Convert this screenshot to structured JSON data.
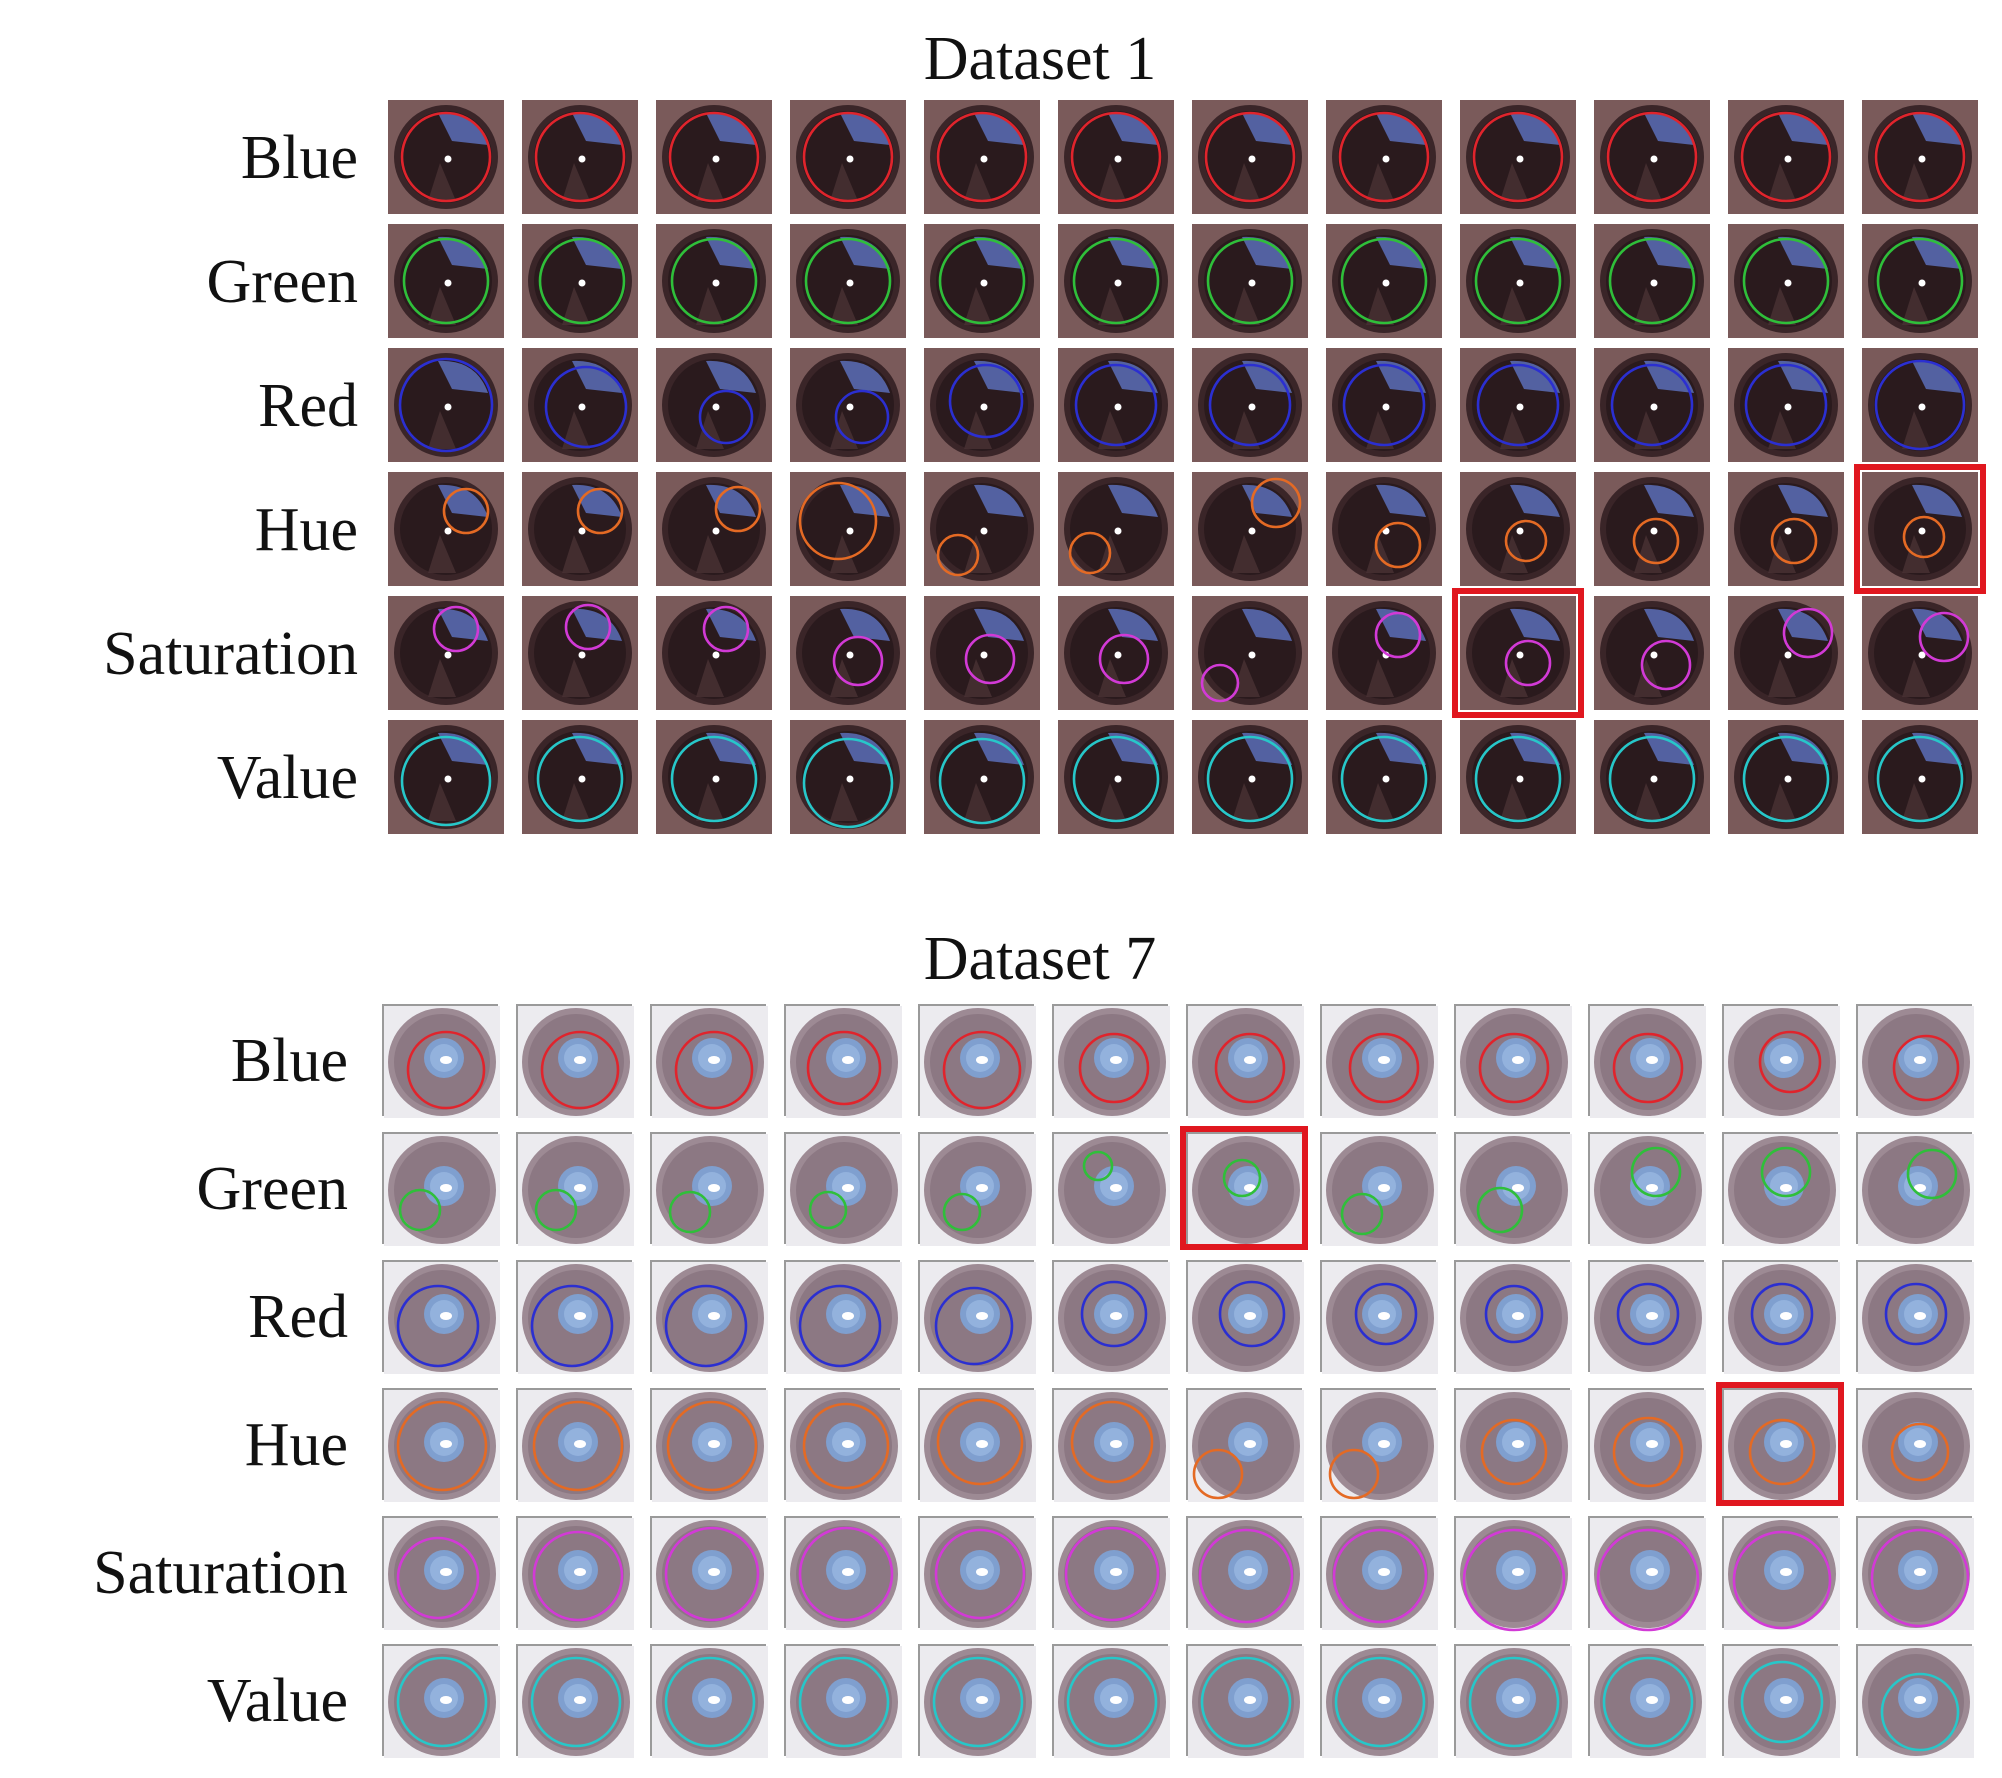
{
  "panels": [
    {
      "title": "Dataset 1",
      "style": "dark",
      "rows": [
        {
          "label": "Blue",
          "circle_color": "#e0242c"
        },
        {
          "label": "Green",
          "circle_color": "#2fbf3a"
        },
        {
          "label": "Red",
          "circle_color": "#2b2fd1"
        },
        {
          "label": "Hue",
          "circle_color": "#e46a24"
        },
        {
          "label": "Saturation",
          "circle_color": "#d23ad6"
        },
        {
          "label": "Value",
          "circle_color": "#27c7c9"
        }
      ],
      "selected_cells": [
        [
          3,
          11
        ],
        [
          4,
          8
        ]
      ]
    },
    {
      "title": "Dataset 7",
      "style": "light",
      "rows": [
        {
          "label": "Blue",
          "circle_color": "#e0242c"
        },
        {
          "label": "Green",
          "circle_color": "#2fbf3a"
        },
        {
          "label": "Red",
          "circle_color": "#2b2fd1"
        },
        {
          "label": "Hue",
          "circle_color": "#e46a24"
        },
        {
          "label": "Saturation",
          "circle_color": "#d23ad6"
        },
        {
          "label": "Value",
          "circle_color": "#27c7c9"
        }
      ],
      "selected_cells": [
        [
          1,
          6
        ],
        [
          3,
          10
        ]
      ]
    }
  ],
  "column_count": 12,
  "highlight_color": "#e0171f"
}
